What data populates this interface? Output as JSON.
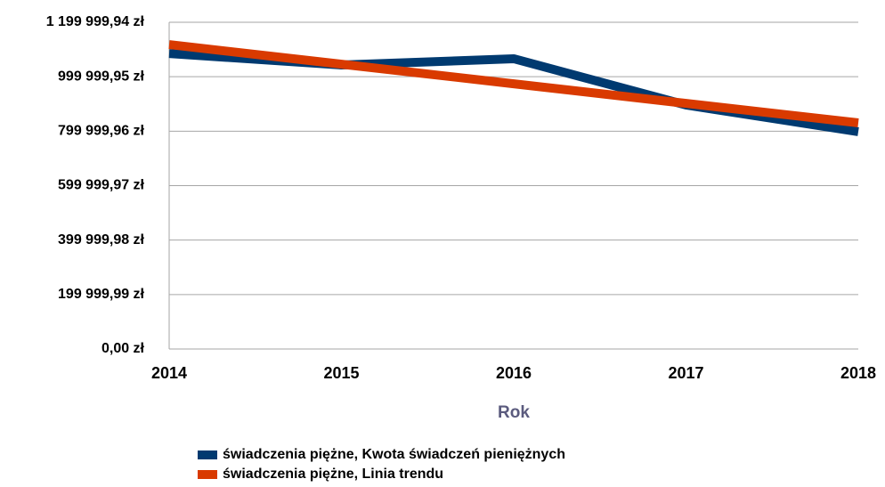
{
  "chart_data": {
    "type": "line",
    "x_label": "Rok",
    "x": [
      2014,
      2015,
      2016,
      2017,
      2018
    ],
    "series": [
      {
        "name": "świadczenia piężne, Kwota świadczeń pieniężnych",
        "color": "#003a70",
        "values": [
          1085000,
          1043000,
          1066000,
          896000,
          798000
        ]
      },
      {
        "name": "świadczenia piężne, Linia trendu",
        "color": "#d93a00",
        "values": [
          1118000,
          1046000,
          974000,
          902000,
          830500
        ]
      }
    ],
    "xlim": [
      2014,
      2018
    ],
    "xticks": [
      2014,
      2015,
      2016,
      2017,
      2018
    ],
    "ylim": [
      0,
      1199999.94
    ],
    "yticks": [
      {
        "value": 0,
        "label": "0,00 zł"
      },
      {
        "value": 199999.99,
        "label": "199 999,99 zł"
      },
      {
        "value": 399999.98,
        "label": "399 999,98 zł"
      },
      {
        "value": 599999.97,
        "label": "599 999,97 zł"
      },
      {
        "value": 799999.96,
        "label": "799 999,96 zł"
      },
      {
        "value": 999999.95,
        "label": "999 999,95 zł"
      },
      {
        "value": 1199999.94,
        "label": "1 199 999,94 zł"
      }
    ],
    "grid": true,
    "legend": "bottom"
  }
}
